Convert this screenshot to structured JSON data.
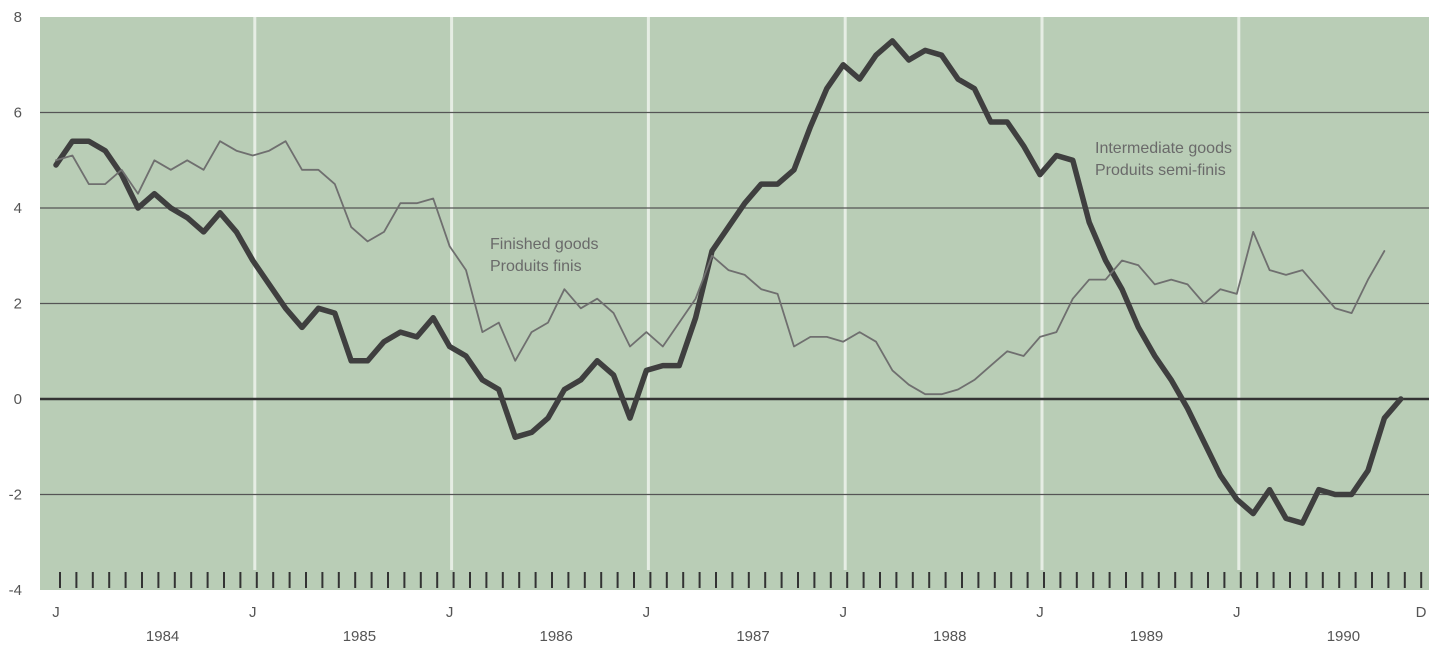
{
  "chart_data": {
    "type": "line",
    "title": "",
    "xlabel": "",
    "ylabel": "",
    "ylim": [
      -4,
      8
    ],
    "y_ticks": [
      8,
      6,
      4,
      2,
      0,
      -2,
      -4
    ],
    "x_range": [
      "1984-01",
      "1990-12"
    ],
    "month_ticks": [
      "J",
      "J",
      "J",
      "J",
      "J",
      "J",
      "J",
      "D"
    ],
    "year_labels": [
      "1984",
      "1985",
      "1986",
      "1987",
      "1988",
      "1989",
      "1990"
    ],
    "grid": "horizontal",
    "legend": "none",
    "annotations": [
      {
        "series": "finished",
        "lines": [
          "Finished goods",
          "Produits finis"
        ]
      },
      {
        "series": "intermediate",
        "lines": [
          "Intermediate goods",
          "Produits semi-finis"
        ]
      }
    ],
    "colors": {
      "background": "#b9cdb6",
      "gridline": "#555555",
      "zeroline": "#333333",
      "vertical_divider": "#e6ede4",
      "intermediate_line": "#3f3f3f",
      "finished_line": "#6f6f6f"
    },
    "series": [
      {
        "name": "Intermediate goods",
        "start": "1984-01",
        "values": [
          4.9,
          5.4,
          5.4,
          5.2,
          4.7,
          4.0,
          4.3,
          4.0,
          3.8,
          3.5,
          3.9,
          3.5,
          2.9,
          2.4,
          1.9,
          1.5,
          1.9,
          1.8,
          0.8,
          0.8,
          1.2,
          1.4,
          1.3,
          1.7,
          1.1,
          0.9,
          0.4,
          0.2,
          -0.8,
          -0.7,
          -0.4,
          0.2,
          0.4,
          0.8,
          0.5,
          -0.4,
          0.6,
          0.7,
          0.7,
          1.7,
          3.1,
          3.6,
          4.1,
          4.5,
          4.5,
          4.8,
          5.7,
          6.5,
          7.0,
          6.7,
          7.2,
          7.5,
          7.1,
          7.3,
          7.2,
          6.7,
          6.5,
          5.8,
          5.8,
          5.3,
          4.7,
          5.1,
          5.0,
          3.7,
          2.9,
          2.3,
          1.5,
          0.9,
          0.4,
          -0.2,
          -0.9,
          -1.6,
          -2.1,
          -2.4,
          -1.9,
          -2.5,
          -2.6,
          -1.9,
          -2.0,
          -2.0,
          -1.5,
          -0.4,
          0.0
        ]
      },
      {
        "name": "Finished goods",
        "start": "1984-01",
        "values": [
          5.0,
          5.1,
          4.5,
          4.5,
          4.8,
          4.3,
          5.0,
          4.8,
          5.0,
          4.8,
          5.4,
          5.2,
          5.1,
          5.2,
          5.4,
          4.8,
          4.8,
          4.5,
          3.6,
          3.3,
          3.5,
          4.1,
          4.1,
          4.2,
          3.2,
          2.7,
          1.4,
          1.6,
          0.8,
          1.4,
          1.6,
          2.3,
          1.9,
          2.1,
          1.8,
          1.1,
          1.4,
          1.1,
          1.6,
          2.1,
          3.0,
          2.7,
          2.6,
          2.3,
          2.2,
          1.1,
          1.3,
          1.3,
          1.2,
          1.4,
          1.2,
          0.6,
          0.3,
          0.1,
          0.1,
          0.2,
          0.4,
          0.7,
          1.0,
          0.9,
          1.3,
          1.4,
          2.1,
          2.5,
          2.5,
          2.9,
          2.8,
          2.4,
          2.5,
          2.4,
          2.0,
          2.3,
          2.2,
          3.5,
          2.7,
          2.6,
          2.7,
          2.3,
          1.9,
          1.8,
          2.5,
          3.1
        ]
      }
    ]
  }
}
